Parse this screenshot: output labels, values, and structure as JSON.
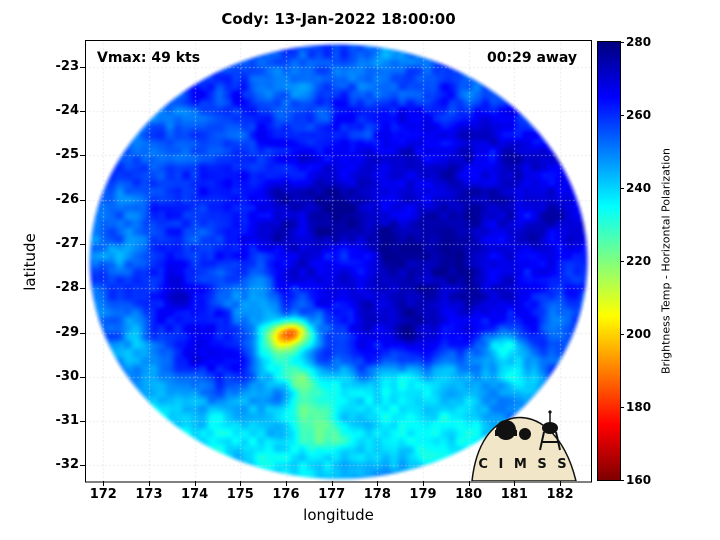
{
  "title": "Cody: 13-Jan-2022 18:00:00",
  "annotations": {
    "vmax": "Vmax: 49 kts",
    "time_away": "00:29 away"
  },
  "axes": {
    "xlabel": "longitude",
    "ylabel": "latitude",
    "x_ticks": [
      172,
      173,
      174,
      175,
      176,
      177,
      178,
      179,
      180,
      181,
      182
    ],
    "y_ticks": [
      -23,
      -24,
      -25,
      -26,
      -27,
      -28,
      -29,
      -30,
      -31,
      -32
    ]
  },
  "colorbar": {
    "label": "Brightness Temp - Horizontal Polarization",
    "ticks": [
      280,
      260,
      240,
      220,
      200,
      180,
      160
    ],
    "min": 160,
    "max": 280
  },
  "logo": {
    "text": "C I M S S"
  },
  "chart_data": {
    "type": "heatmap",
    "title": "Cody: 13-Jan-2022 18:00:00",
    "xlabel": "longitude",
    "ylabel": "latitude",
    "xlim": [
      171.6,
      182.7
    ],
    "ylim": [
      -32.35,
      -22.4
    ],
    "grid": true,
    "colormap": "jet_reversed",
    "value_label": "Brightness Temp - Horizontal Polarization (K)",
    "value_range": [
      160,
      280
    ],
    "colorbar_orientation": "vertical",
    "storm": {
      "name": "Cody",
      "valid_time": "13-Jan-2022 18:00:00",
      "vmax_kts": 49,
      "time_offset": "00:29 away"
    },
    "swath": {
      "center": [
        177.15,
        -27.4
      ],
      "rx": 5.5,
      "ry": 4.95
    },
    "base_value": 258,
    "noise": {
      "large_amp": 12,
      "large_scale": 2.2,
      "fine_amp": 7,
      "fine_scale": 5.5
    },
    "features": [
      {
        "lon": 177.8,
        "lat": -26.6,
        "dv": 13,
        "rx": 2.3,
        "ry": 1.7
      },
      {
        "lon": 179.9,
        "lat": -27.6,
        "dv": 11,
        "rx": 2.0,
        "ry": 1.8
      },
      {
        "lon": 180.3,
        "lat": -24.8,
        "dv": 8,
        "rx": 1.9,
        "ry": 1.4
      },
      {
        "lon": 176.0,
        "lat": -26.4,
        "dv": 8,
        "rx": 1.2,
        "ry": 1.0
      },
      {
        "lon": 173.6,
        "lat": -28.3,
        "dv": 9,
        "rx": 0.9,
        "ry": 0.9
      },
      {
        "lon": 174.3,
        "lat": -29.8,
        "dv": 9,
        "rx": 0.9,
        "ry": 0.7
      },
      {
        "lon": 173.1,
        "lat": -24.9,
        "dv": 6,
        "rx": 0.8,
        "ry": 0.7
      },
      {
        "lon": 178.6,
        "lat": -28.9,
        "dv": 7,
        "rx": 1.2,
        "ry": 0.8
      },
      {
        "lon": 181.9,
        "lat": -26.5,
        "dv": 8,
        "rx": 0.9,
        "ry": 1.2
      },
      {
        "lon": 174.6,
        "lat": -23.6,
        "dv": 6,
        "rx": 1.0,
        "ry": 0.6
      },
      {
        "lon": 176.5,
        "lat": -31.8,
        "dv": -20,
        "rx": 3.2,
        "ry": 1.1
      },
      {
        "lon": 179.8,
        "lat": -31.2,
        "dv": -18,
        "rx": 1.8,
        "ry": 0.8
      },
      {
        "lon": 173.6,
        "lat": -30.9,
        "dv": -16,
        "rx": 1.4,
        "ry": 0.8
      },
      {
        "lon": 172.6,
        "lat": -29.3,
        "dv": -12,
        "rx": 0.8,
        "ry": 1.0
      },
      {
        "lon": 172.4,
        "lat": -27.0,
        "dv": -9,
        "rx": 0.7,
        "ry": 1.3
      },
      {
        "lon": 173.3,
        "lat": -24.6,
        "dv": -9,
        "rx": 1.0,
        "ry": 0.8
      },
      {
        "lon": 175.5,
        "lat": -23.2,
        "dv": -9,
        "rx": 1.3,
        "ry": 0.6
      },
      {
        "lon": 178.0,
        "lat": -23.0,
        "dv": -8,
        "rx": 1.3,
        "ry": 0.6
      },
      {
        "lon": 180.6,
        "lat": -23.6,
        "dv": -7,
        "rx": 1.2,
        "ry": 0.6
      },
      {
        "lon": 175.1,
        "lat": -28.2,
        "dv": -10,
        "rx": 0.55,
        "ry": 0.9
      },
      {
        "lon": 177.6,
        "lat": -30.35,
        "dv": -17,
        "rx": 1.6,
        "ry": 0.5
      },
      {
        "lon": 179.3,
        "lat": -30.0,
        "dv": -13,
        "rx": 1.1,
        "ry": 0.45
      },
      {
        "lon": 180.75,
        "lat": -29.4,
        "dv": -30,
        "rx": 0.55,
        "ry": 0.4
      },
      {
        "lon": 181.3,
        "lat": -30.1,
        "dv": -22,
        "rx": 0.5,
        "ry": 0.4
      },
      {
        "lon": 182.0,
        "lat": -28.6,
        "dv": -12,
        "rx": 0.5,
        "ry": 0.5
      },
      {
        "lon": 176.7,
        "lat": -31.0,
        "dv": -16,
        "rx": 0.5,
        "ry": 0.8
      },
      {
        "lon": 176.35,
        "lat": -30.2,
        "dv": -20,
        "rx": 0.35,
        "ry": 0.7
      },
      {
        "lon": 176.1,
        "lat": -29.05,
        "dv": -50,
        "rx": 0.6,
        "ry": 0.38
      },
      {
        "lon": 176.15,
        "lat": -29.0,
        "dv": -20,
        "rx": 0.3,
        "ry": 0.2
      },
      {
        "lon": 175.85,
        "lat": -29.55,
        "dv": -28,
        "rx": 0.4,
        "ry": 0.45
      },
      {
        "lon": 175.6,
        "lat": -28.4,
        "dv": -14,
        "rx": 0.35,
        "ry": 0.5
      },
      {
        "lon": 177.4,
        "lat": -27.2,
        "dv": -7,
        "rx": 0.55,
        "ry": 0.45
      },
      {
        "lon": 178.9,
        "lat": -25.9,
        "dv": -5,
        "rx": 0.9,
        "ry": 0.5
      }
    ]
  }
}
